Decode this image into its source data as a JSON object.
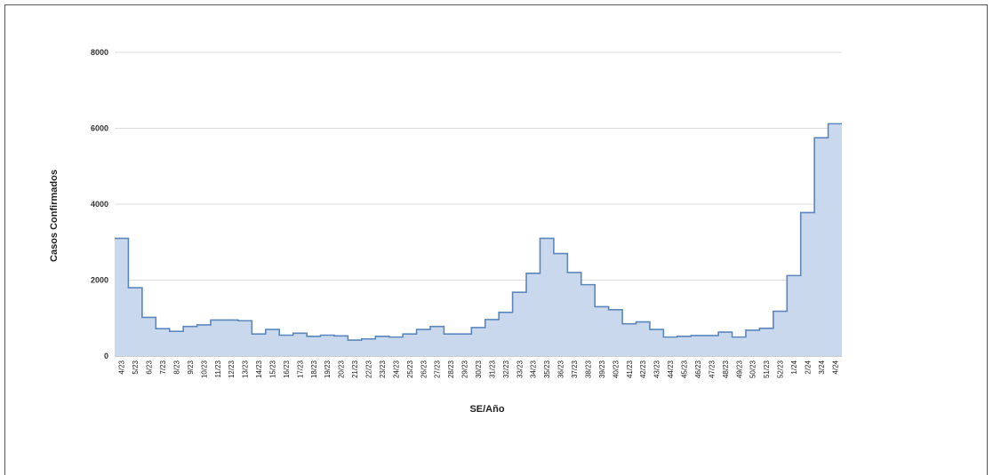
{
  "chart_data": {
    "type": "area",
    "style": "step",
    "title": "",
    "xlabel": "SE/Año",
    "ylabel": "Casos Confirmados",
    "ylim": [
      0,
      8000
    ],
    "yticks": [
      0,
      2000,
      4000,
      6000,
      8000
    ],
    "grid": true,
    "legend": "none",
    "fill_color": "#c9d8ec",
    "line_color": "#5b87bd",
    "categories": [
      "4/23",
      "5/23",
      "6/23",
      "7/23",
      "8/23",
      "9/23",
      "10/23",
      "11/23",
      "12/23",
      "13/23",
      "14/23",
      "15/23",
      "16/23",
      "17/23",
      "18/23",
      "19/23",
      "20/23",
      "21/23",
      "22/23",
      "23/23",
      "24/23",
      "25/23",
      "26/23",
      "27/23",
      "28/23",
      "29/23",
      "30/23",
      "31/23",
      "32/23",
      "33/23",
      "34/23",
      "35/23",
      "36/23",
      "37/23",
      "38/23",
      "39/23",
      "40/23",
      "41/23",
      "42/23",
      "43/23",
      "44/23",
      "45/23",
      "46/23",
      "47/23",
      "48/23",
      "49/23",
      "50/23",
      "51/23",
      "52/23",
      "1/24",
      "2/24",
      "3/24",
      "4/24"
    ],
    "values": [
      3100,
      1800,
      1020,
      720,
      650,
      780,
      820,
      950,
      950,
      930,
      580,
      700,
      550,
      600,
      520,
      550,
      530,
      420,
      450,
      520,
      500,
      580,
      700,
      780,
      580,
      580,
      750,
      960,
      1150,
      1680,
      2180,
      3100,
      2700,
      2200,
      1880,
      1300,
      1220,
      850,
      900,
      700,
      500,
      520,
      540,
      540,
      630,
      500,
      680,
      730,
      1180,
      2120,
      3780,
      5750,
      6120
    ]
  }
}
